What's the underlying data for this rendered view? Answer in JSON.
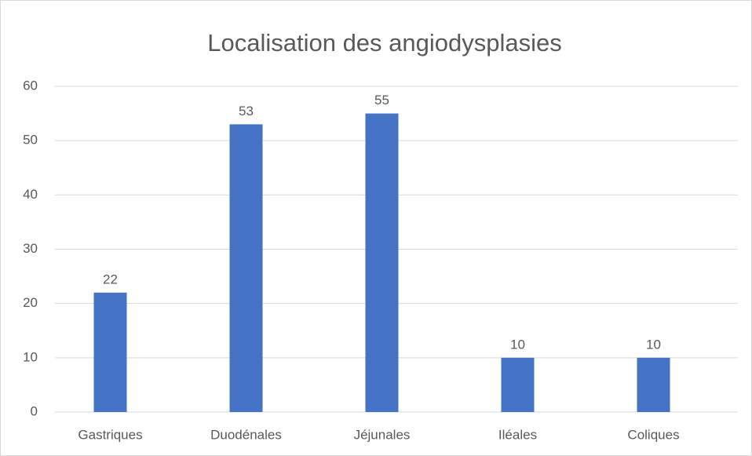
{
  "chart_data": {
    "type": "bar",
    "title": "Localisation des angiodysplasies",
    "categories": [
      "Gastriques",
      "Duodénales",
      "Jéjunales",
      "Iléales",
      "Coliques"
    ],
    "values": [
      22,
      53,
      55,
      10,
      10
    ],
    "color": "#4472c4",
    "ylim": [
      0,
      60
    ],
    "yticks": [
      0,
      10,
      20,
      30,
      40,
      50,
      60
    ],
    "grid": true,
    "data_labels": true
  }
}
